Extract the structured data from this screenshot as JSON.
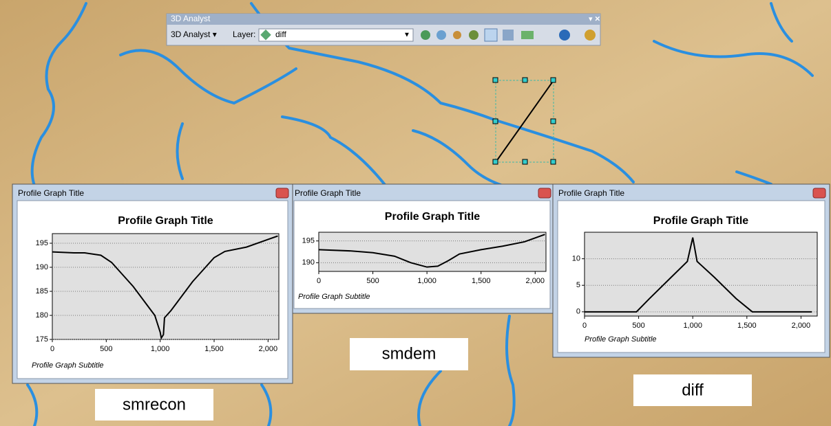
{
  "toolbar": {
    "title": "3D Analyst",
    "menu": "3D Analyst ▾",
    "layer_label": "Layer:",
    "layer_value": "diff"
  },
  "windows": [
    {
      "title": "Profile Graph Title"
    },
    {
      "title": "Profile Graph Title"
    },
    {
      "title": "Profile Graph Title"
    }
  ],
  "labels": [
    "smrecon",
    "smdem",
    "diff"
  ],
  "chart_data": [
    {
      "type": "line",
      "title": "Profile Graph Title",
      "subtitle": "Profile Graph Subtitle",
      "color": "#000000",
      "grid": true,
      "x": [
        0,
        200,
        300,
        450,
        550,
        650,
        750,
        850,
        950,
        1000,
        1010,
        1030,
        1040,
        1100,
        1200,
        1300,
        1400,
        1500,
        1600,
        1800,
        2000,
        2090
      ],
      "values": [
        193.2,
        193,
        193,
        192.5,
        191,
        188.5,
        186,
        183,
        180,
        176.5,
        175.3,
        176,
        179.5,
        181,
        184,
        187,
        189.5,
        192,
        193.3,
        194.2,
        195.8,
        196.5
      ],
      "xlim": [
        0,
        2100
      ],
      "ylim": [
        175,
        197
      ],
      "xticks": [
        0,
        500,
        {
          "value": 1000,
          "label": "1,000"
        },
        {
          "value": 1500,
          "label": "1,500"
        },
        {
          "value": 2000,
          "label": "2,000"
        }
      ],
      "yticks": [
        175,
        180,
        185,
        190,
        195
      ]
    },
    {
      "type": "line",
      "title": "Profile Graph Title",
      "subtitle": "Profile Graph Subtitle",
      "color": "#000000",
      "grid": true,
      "x": [
        0,
        300,
        500,
        700,
        850,
        1000,
        1100,
        1200,
        1300,
        1500,
        1700,
        1900,
        2090
      ],
      "values": [
        193,
        192.7,
        192.3,
        191.5,
        190,
        189,
        189.2,
        190.5,
        192,
        193,
        193.8,
        194.8,
        196.5
      ],
      "xlim": [
        0,
        2100
      ],
      "ylim": [
        188,
        197
      ],
      "xticks": [
        0,
        500,
        {
          "value": 1000,
          "label": "1,000"
        },
        {
          "value": 1500,
          "label": "1,500"
        },
        {
          "value": 2000,
          "label": "2,000"
        }
      ],
      "yticks": [
        190,
        195
      ]
    },
    {
      "type": "line",
      "title": "Profile Graph Title",
      "subtitle": "Profile Graph Subtitle",
      "color": "#000000",
      "grid": true,
      "x": [
        0,
        480,
        600,
        800,
        950,
        1000,
        1040,
        1200,
        1400,
        1550,
        2100
      ],
      "values": [
        0,
        0,
        2.5,
        6.5,
        9.5,
        14,
        9.5,
        6.5,
        2.5,
        0,
        0
      ],
      "xlim": [
        0,
        2150
      ],
      "ylim": [
        -0.8,
        15
      ],
      "xticks": [
        0,
        500,
        {
          "value": 1000,
          "label": "1,000"
        },
        {
          "value": 1500,
          "label": "1,500"
        },
        {
          "value": 2000,
          "label": "2,000"
        }
      ],
      "yticks": [
        0,
        5,
        10
      ]
    }
  ]
}
